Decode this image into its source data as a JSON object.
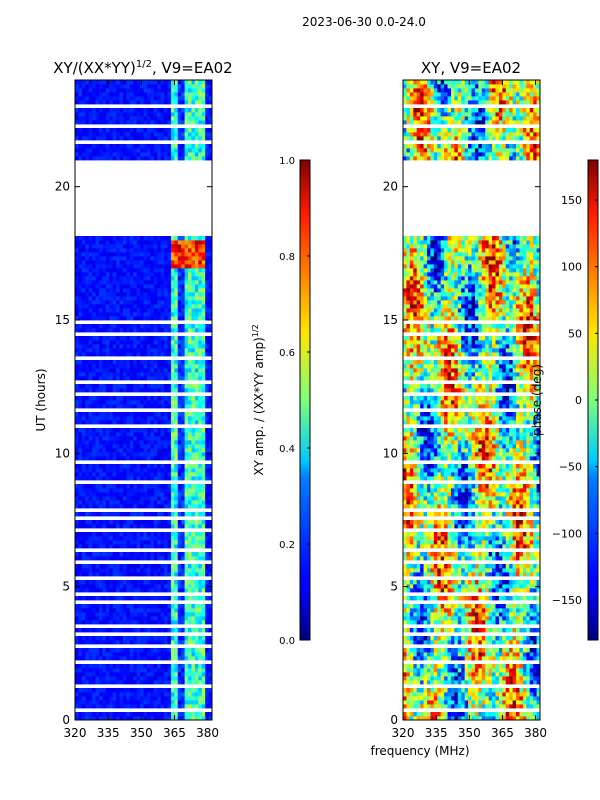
{
  "suptitle": "2023-06-30 0.0-24.0",
  "shared_xlabel": "frequency (MHz)",
  "chart_data": [
    {
      "type": "heatmap",
      "title": "XY/(XX*YY)",
      "title_sup": "1/2",
      "title_suffix": ", V9=EA02",
      "xlabel": "",
      "ylabel": "UT (hours)",
      "xlim": [
        320,
        382
      ],
      "ylim": [
        0,
        24
      ],
      "xticks": [
        320,
        335,
        350,
        365,
        380
      ],
      "yticks": [
        0,
        5,
        10,
        15,
        20
      ],
      "colorscale": "jet",
      "colorbar": {
        "label": "XY amp. / (XX*YY amp)",
        "label_sup": "1/2",
        "range": [
          0.0,
          1.0
        ],
        "ticks": [
          "0.0",
          "0.2",
          "0.4",
          "0.6",
          "0.8",
          "1.0"
        ]
      },
      "bright_band_mhz": [
        363,
        379
      ],
      "flagged_gap_hours": [
        [
          18.2,
          21.0
        ]
      ]
    },
    {
      "type": "heatmap",
      "title": "XY, V9=EA02",
      "xlabel": "frequency (MHz)",
      "ylabel": "",
      "xlim": [
        320,
        382
      ],
      "ylim": [
        0,
        24
      ],
      "xticks": [
        320,
        335,
        350,
        365,
        380
      ],
      "yticks": [
        0,
        5,
        10,
        15,
        20
      ],
      "colorscale": "jet",
      "colorbar": {
        "label": "phase (deg)",
        "range": [
          -180,
          180
        ],
        "ticks": [
          "150",
          "100",
          "50",
          "0",
          "−50",
          "−100",
          "−150"
        ]
      },
      "flagged_gap_hours": [
        [
          18.2,
          21.0
        ]
      ]
    }
  ]
}
